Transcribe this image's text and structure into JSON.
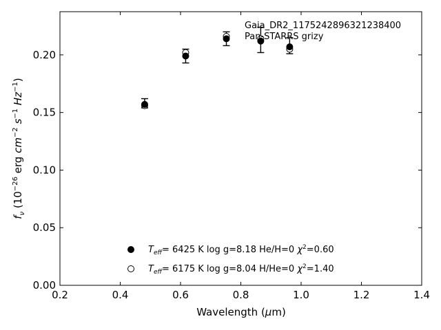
{
  "chart_data": {
    "type": "scatter",
    "annotation": {
      "object_name": "Gaia_DR2_1175242896321238400",
      "survey": "Pan-STARRS grizy"
    },
    "xlabel": "Wavelength (μm)",
    "ylabel": "f_ν (10^-26 erg cm^-2 s^-1 Hz^-1)",
    "xlim": [
      0.2,
      1.4
    ],
    "ylim": [
      0.0,
      0.2375
    ],
    "xticks": [
      0.2,
      0.4,
      0.6,
      0.8,
      1.0,
      1.2,
      1.4
    ],
    "xtick_labels": [
      "0.2",
      "0.4",
      "0.6",
      "0.8",
      "1.0",
      "1.2",
      "1.4"
    ],
    "yticks": [
      0.0,
      0.05,
      0.1,
      0.15,
      0.2
    ],
    "ytick_labels": [
      "0.00",
      "0.05",
      "0.10",
      "0.15",
      "0.20"
    ],
    "grid": false,
    "legend_position": "lower-center",
    "observed": {
      "x": [
        0.481,
        0.617,
        0.752,
        0.866,
        0.962
      ],
      "y": [
        0.158,
        0.199,
        0.214,
        0.213,
        0.208
      ],
      "yerr": [
        0.004,
        0.006,
        0.006,
        0.011,
        0.007
      ]
    },
    "series": [
      {
        "name": "Teff= 6425 K log g=8.18 He/H=0 χ²=0.60",
        "marker": "filled-circle",
        "x": [
          0.481,
          0.617,
          0.752,
          0.866,
          0.962
        ],
        "y": [
          0.157,
          0.199,
          0.214,
          0.212,
          0.207
        ]
      },
      {
        "name": "Teff= 6175 K log g=8.04 H/He=0 χ²=1.40",
        "marker": "open-circle",
        "x": [
          0.481,
          0.617,
          0.752,
          0.866,
          0.962
        ],
        "y": [
          0.156,
          0.202,
          0.216,
          0.214,
          0.205
        ]
      }
    ],
    "legend_parts": [
      {
        "teff": "6425 K",
        "logg": "log g=8.18",
        "comp": "He/H=0",
        "chi": "=0.60"
      },
      {
        "teff": "6175 K",
        "logg": "log g=8.04",
        "comp": "H/He=0",
        "chi": "=1.40"
      }
    ]
  }
}
